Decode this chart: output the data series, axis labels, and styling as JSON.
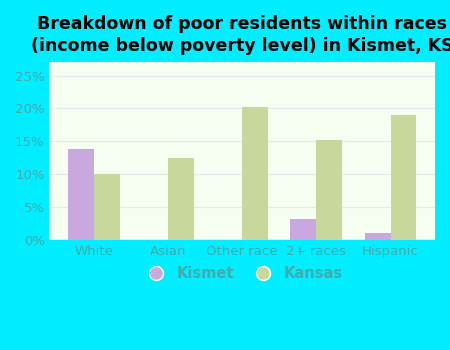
{
  "title": "Breakdown of poor residents within races\n(income below poverty level) in Kismet, KS",
  "categories": [
    "White",
    "Asian",
    "Other race",
    "2+ races",
    "Hispanic"
  ],
  "kismet_values": [
    13.9,
    0,
    0,
    3.2,
    1.1
  ],
  "kansas_values": [
    10.0,
    12.5,
    20.3,
    15.3,
    19.0
  ],
  "kismet_color": "#c9a8e0",
  "kansas_color": "#c8d89a",
  "background_outer": "#00eeff",
  "background_inner_top": "#e8f5e0",
  "background_inner_bottom": "#f5fef0",
  "ylim": [
    0,
    27
  ],
  "yticks": [
    0,
    5,
    10,
    15,
    20,
    25
  ],
  "ytick_labels": [
    "0%",
    "5%",
    "10%",
    "15%",
    "20%",
    "25%"
  ],
  "bar_width": 0.35,
  "title_fontsize": 12.5,
  "tick_fontsize": 9.5,
  "legend_fontsize": 10.5,
  "tick_color": "#44aaaa",
  "grid_color": "#e8e8e8"
}
